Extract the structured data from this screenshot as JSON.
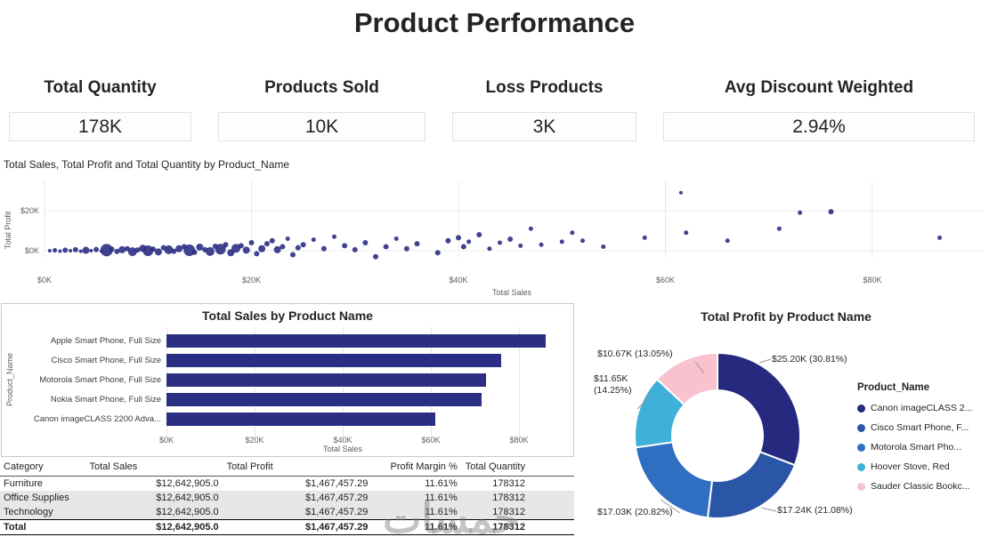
{
  "title": "Product Performance",
  "watermark": "خمسات",
  "kpis": [
    {
      "label": "Total Quantity",
      "value": "178K"
    },
    {
      "label": "Products Sold",
      "value": "10K"
    },
    {
      "label": "Loss Products",
      "value": "3K"
    },
    {
      "label": "Avg Discount Weighted",
      "value": "2.94%"
    }
  ],
  "chart_data": [
    {
      "type": "scatter",
      "title": "Total Sales, Total Profit and Total Quantity by Product_Name",
      "xlabel": "Total Sales",
      "ylabel": "Total Profit",
      "xlim": [
        0,
        91
      ],
      "ylim": [
        -7,
        33
      ],
      "units": "thousands of dollars",
      "x_ticks": [
        {
          "k": 0,
          "label": "$0K"
        },
        {
          "k": 20,
          "label": "$20K"
        },
        {
          "k": 40,
          "label": "$40K"
        },
        {
          "k": 60,
          "label": "$60K"
        },
        {
          "k": 80,
          "label": "$80K"
        }
      ],
      "y_ticks": [
        {
          "k": 0,
          "label": "$0K"
        },
        {
          "k": 20,
          "label": "$20K"
        }
      ],
      "point_color": "#2B2F84",
      "points": [
        [
          0.5,
          0,
          2
        ],
        [
          1,
          0.2,
          2.5
        ],
        [
          1.5,
          -0.2,
          2
        ],
        [
          2,
          0.3,
          3
        ],
        [
          2.5,
          0,
          2
        ],
        [
          3,
          0.5,
          3
        ],
        [
          3.5,
          -0.3,
          2
        ],
        [
          4,
          0.2,
          4
        ],
        [
          4.5,
          0,
          2
        ],
        [
          5,
          0.6,
          3
        ],
        [
          5.5,
          -0.2,
          2
        ],
        [
          6,
          0.3,
          7
        ],
        [
          6.5,
          0.8,
          3
        ],
        [
          7,
          -0.4,
          3
        ],
        [
          7.5,
          0.5,
          4
        ],
        [
          8,
          1,
          3
        ],
        [
          8.5,
          -0.5,
          5
        ],
        [
          9,
          0.4,
          3
        ],
        [
          9.5,
          1.2,
          4
        ],
        [
          10,
          0,
          6
        ],
        [
          10.5,
          0.8,
          3
        ],
        [
          11,
          -0.6,
          4
        ],
        [
          11.5,
          1.5,
          3
        ],
        [
          12,
          0.5,
          5
        ],
        [
          12.5,
          -0.3,
          3
        ],
        [
          13,
          1,
          4
        ],
        [
          13.5,
          2,
          3
        ],
        [
          14,
          0.2,
          6.5
        ],
        [
          14.5,
          -0.8,
          3
        ],
        [
          15,
          1.8,
          4
        ],
        [
          15.5,
          0.5,
          3
        ],
        [
          16,
          -0.4,
          5
        ],
        [
          16.5,
          2.2,
          3
        ],
        [
          17,
          0.8,
          6
        ],
        [
          17.5,
          3,
          3
        ],
        [
          18,
          -1,
          4
        ],
        [
          18.5,
          1.2,
          5
        ],
        [
          19,
          2.5,
          3
        ],
        [
          19.5,
          0.3,
          4
        ],
        [
          20,
          4,
          3
        ],
        [
          20.5,
          -1.5,
          3
        ],
        [
          21,
          1,
          4
        ],
        [
          21.5,
          3.5,
          3
        ],
        [
          22,
          5,
          3
        ],
        [
          22.5,
          0.5,
          4
        ],
        [
          23,
          2,
          3
        ],
        [
          23.5,
          6,
          2.5
        ],
        [
          24,
          -2,
          3
        ],
        [
          24.5,
          1.5,
          3
        ],
        [
          25,
          3,
          3
        ],
        [
          26,
          5.5,
          2.5
        ],
        [
          27,
          1,
          3
        ],
        [
          28,
          7,
          2.5
        ],
        [
          29,
          2.5,
          3
        ],
        [
          30,
          0.5,
          3
        ],
        [
          31,
          4,
          3
        ],
        [
          32,
          -3,
          3
        ],
        [
          33,
          2,
          3
        ],
        [
          34,
          6,
          2.5
        ],
        [
          35,
          1,
          3
        ],
        [
          36,
          3.5,
          3
        ],
        [
          38,
          -1,
          3
        ],
        [
          39,
          5,
          3
        ],
        [
          40,
          6.5,
          3
        ],
        [
          40.5,
          2,
          3
        ],
        [
          41,
          4.5,
          2.5
        ],
        [
          42,
          8,
          3
        ],
        [
          43,
          1,
          2.5
        ],
        [
          44,
          4,
          2.5
        ],
        [
          45,
          5.8,
          3
        ],
        [
          46,
          2.5,
          2.5
        ],
        [
          47,
          11,
          2.5
        ],
        [
          48,
          3,
          2.5
        ],
        [
          50,
          4.5,
          2.5
        ],
        [
          51,
          9,
          2.5
        ],
        [
          52,
          5,
          2.5
        ],
        [
          54,
          2,
          2.5
        ],
        [
          58,
          6.5,
          2.5
        ],
        [
          61.5,
          29,
          2
        ],
        [
          62,
          9,
          2.5
        ],
        [
          66,
          5,
          2.5
        ],
        [
          71,
          11,
          2.5
        ],
        [
          73,
          19,
          2.5
        ],
        [
          76,
          19.5,
          3
        ],
        [
          86.5,
          6.5,
          2.5
        ]
      ]
    },
    {
      "type": "bar",
      "title": "Total Sales by Product Name",
      "xlabel": "Total Sales",
      "ylabel": "Product_Name",
      "xlim": [
        0,
        92
      ],
      "bar_color": "#2B2F84",
      "categories": [
        "Apple Smart Phone, Full Size",
        "Cisco Smart Phone, Full Size",
        "Motorola Smart Phone, Full Size",
        "Nokia Smart Phone, Full Size",
        "Canon imageCLASS 2200 Adva..."
      ],
      "values_k": [
        86,
        76,
        72.5,
        71.5,
        61
      ],
      "x_ticks": [
        {
          "k": 0,
          "label": "$0K"
        },
        {
          "k": 20,
          "label": "$20K"
        },
        {
          "k": 40,
          "label": "$40K"
        },
        {
          "k": 60,
          "label": "$60K"
        },
        {
          "k": 80,
          "label": "$80K"
        }
      ]
    },
    {
      "type": "pie",
      "variant": "donut",
      "title": "Total Profit by Product Name",
      "legend_title": "Product_Name",
      "legend_position": "right",
      "slices": [
        {
          "name": "Canon imageCLASS 2...",
          "value_k": 25.2,
          "pct": 30.81,
          "label": "$25.20K (30.81%)",
          "color": "#252A7F"
        },
        {
          "name": "Cisco Smart Phone, F...",
          "value_k": 17.24,
          "pct": 21.08,
          "label": "$17.24K (21.08%)",
          "color": "#2B55A7"
        },
        {
          "name": "Motorola Smart Pho...",
          "value_k": 17.03,
          "pct": 20.82,
          "label": "$17.03K (20.82%)",
          "color": "#2F6FC1"
        },
        {
          "name": "Hoover Stove, Red",
          "value_k": 11.65,
          "pct": 14.25,
          "label": "$11.65K (14.25%)",
          "color": "#3FB1D8"
        },
        {
          "name": "Sauder Classic Bookc...",
          "value_k": 10.67,
          "pct": 13.05,
          "label": "$10.67K (13.05%)",
          "color": "#F8C3CF"
        }
      ]
    },
    {
      "type": "table",
      "columns": [
        "Category",
        "Total Sales",
        "Total Profit",
        "Profit Margin %",
        "Total Quantity"
      ],
      "rows": [
        [
          "Furniture",
          "$12,642,905.0",
          "$1,467,457.29",
          "11.61%",
          "178312"
        ],
        [
          "Office Supplies",
          "$12,642,905.0",
          "$1,467,457.29",
          "11.61%",
          "178312"
        ],
        [
          "Technology",
          "$12,642,905.0",
          "$1,467,457.29",
          "11.61%",
          "178312"
        ]
      ],
      "total_row": [
        "Total",
        "$12,642,905.0",
        "$1,467,457.29",
        "11.61%",
        "178312"
      ]
    }
  ]
}
